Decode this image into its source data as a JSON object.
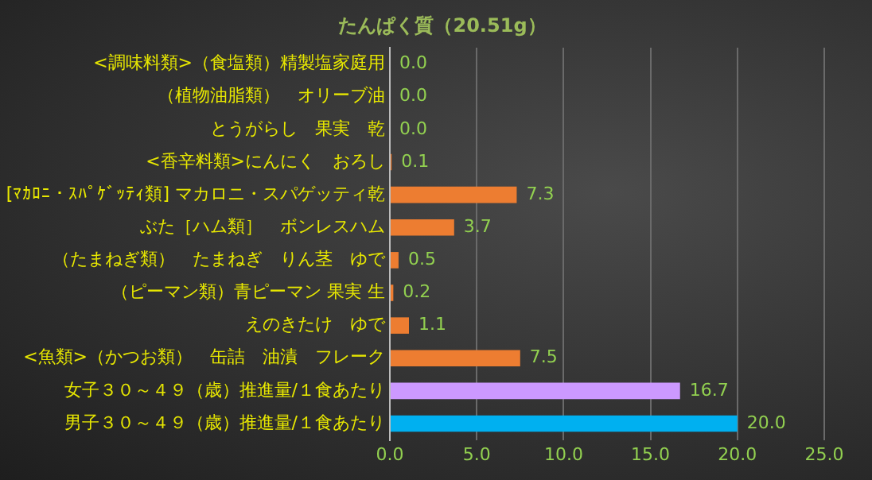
{
  "chart_data": {
    "type": "bar",
    "orientation": "horizontal",
    "title": "たんぱく質（20.51g）",
    "categories": [
      "<調味料類>（食塩類）精製塩家庭用",
      "（植物油脂類）　オリーブ油",
      "とうがらし　果実　乾",
      "<香辛料類>にんにく　おろし",
      "[ﾏｶﾛﾆ・ｽﾊﾟｹﾞｯﾃｨ類] マカロニ・スパゲッティ乾",
      "ぶた［ハム類］　ボンレスハム",
      "（たまねぎ類）　たまねぎ　りん茎　ゆで",
      "（ピーマン類）青ピーマン 果実 生",
      "えのきたけ　ゆで",
      "<魚類>（かつお類）　缶詰　油漬　フレーク",
      "女子３０～４９（歳）推進量/１食あたり",
      "男子３０～４９（歳）推進量/１食あたり"
    ],
    "values": [
      0.0,
      0.0,
      0.0,
      0.1,
      7.3,
      3.7,
      0.5,
      0.2,
      1.1,
      7.5,
      16.7,
      20.0
    ],
    "value_labels": [
      "0.0",
      "0.0",
      "0.0",
      "0.1",
      "7.3",
      "3.7",
      "0.5",
      "0.2",
      "1.1",
      "7.5",
      "16.7",
      "20.0"
    ],
    "colors": [
      "#ed7d31",
      "#ed7d31",
      "#ed7d31",
      "#ed7d31",
      "#ed7d31",
      "#ed7d31",
      "#ed7d31",
      "#ed7d31",
      "#ed7d31",
      "#ed7d31",
      "#cc99ff",
      "#00b0f0"
    ],
    "xlim": [
      0,
      25
    ],
    "xticks": [
      {
        "value": 0,
        "label": "0.0"
      },
      {
        "value": 5,
        "label": "5.0"
      },
      {
        "value": 10,
        "label": "10.0"
      },
      {
        "value": 15,
        "label": "15.0"
      },
      {
        "value": 20,
        "label": "20.0"
      },
      {
        "value": 25,
        "label": "25.0"
      }
    ],
    "grid": "x",
    "legend": false
  }
}
